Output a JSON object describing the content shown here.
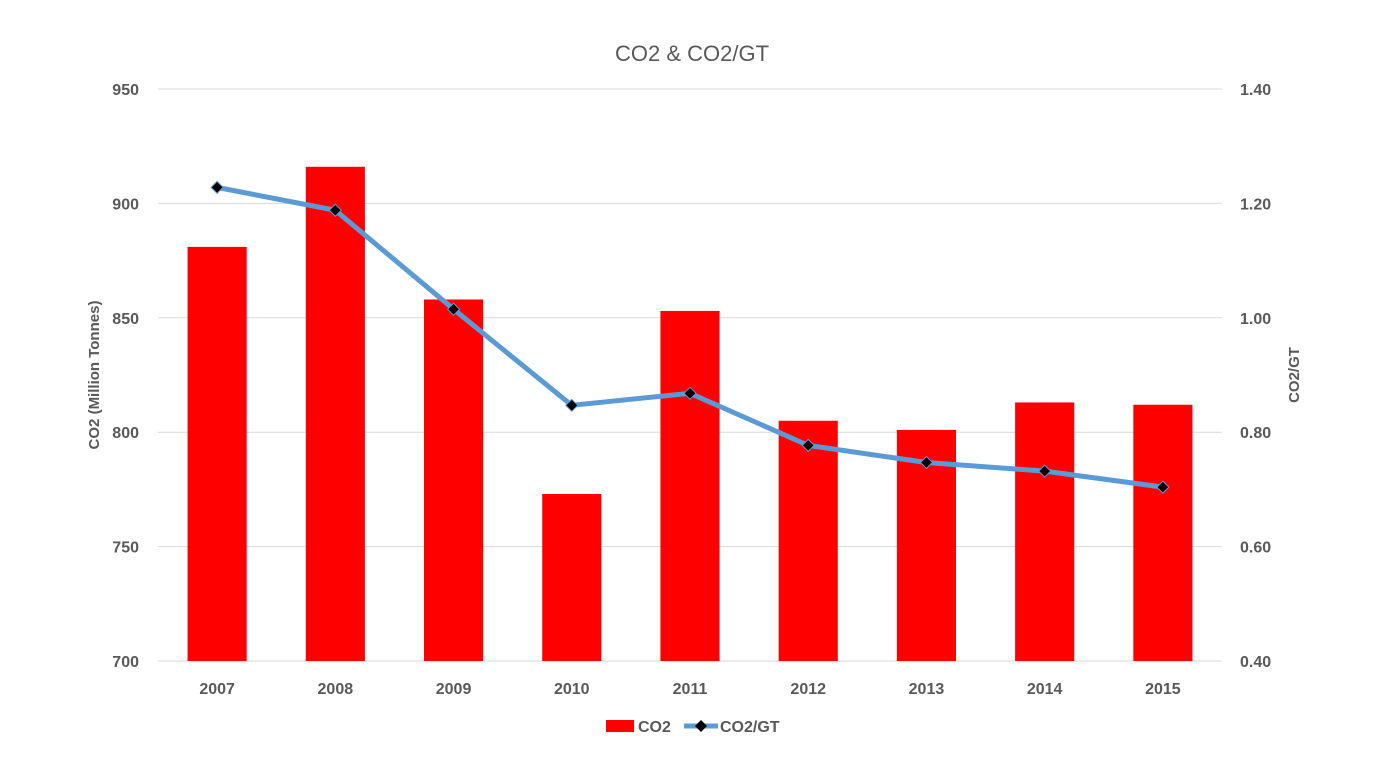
{
  "chart_data": {
    "type": "bar",
    "title": "CO2 & CO2/GT",
    "categories": [
      "2007",
      "2008",
      "2009",
      "2010",
      "2011",
      "2012",
      "2013",
      "2014",
      "2015"
    ],
    "series": [
      {
        "name": "CO2",
        "chart_type": "bar",
        "axis": "left",
        "color": "#ff0000",
        "values": [
          881,
          916,
          858,
          773,
          853,
          805,
          801,
          813,
          812
        ]
      },
      {
        "name": "CO2/GT",
        "chart_type": "line",
        "axis": "right",
        "color": "#5b9bd5",
        "marker_color": "#000000",
        "marker": "diamond",
        "values": [
          1.228,
          1.188,
          1.015,
          0.847,
          0.868,
          0.777,
          0.747,
          0.732,
          0.704
        ]
      }
    ],
    "ylabel": "CO2 (Million Tonnes)",
    "ylim": [
      700,
      950
    ],
    "yticks": [
      "700",
      "750",
      "800",
      "850",
      "900",
      "950"
    ],
    "y2label": "CO2/GT",
    "y2lim": [
      0.4,
      1.4
    ],
    "y2ticks": [
      "0.40",
      "0.60",
      "0.80",
      "1.00",
      "1.20",
      "1.40"
    ],
    "grid": true,
    "gridline_color": "#d9d9d9",
    "legend_position": "bottom"
  }
}
